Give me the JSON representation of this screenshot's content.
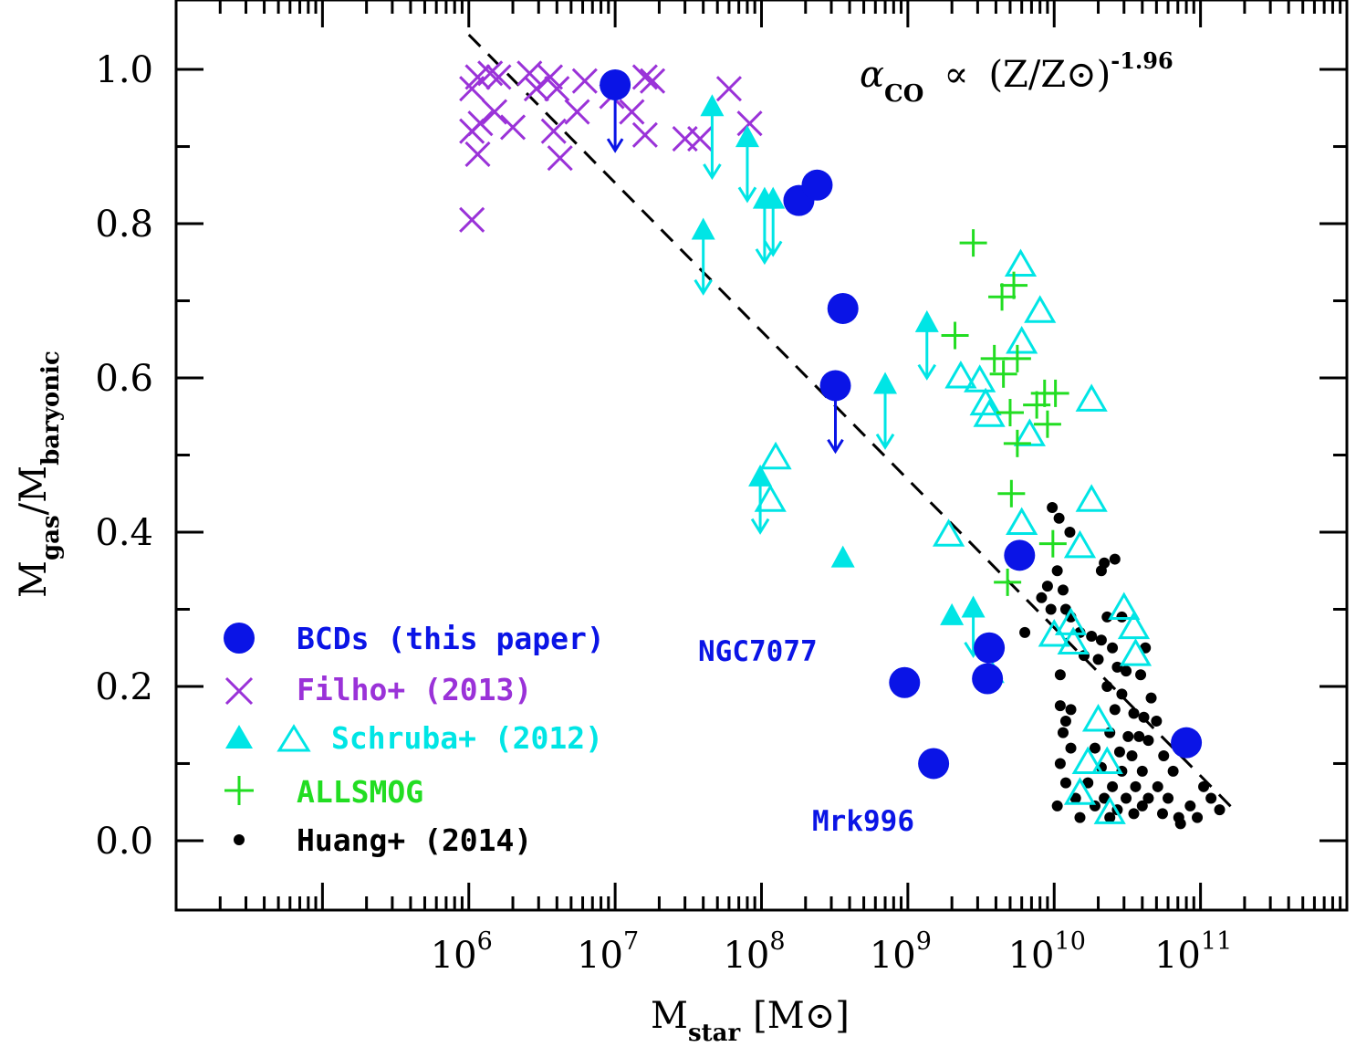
{
  "chart_data": {
    "type": "scatter",
    "x_scale": "log",
    "xlim": [
      10000,
      1000000000000.0
    ],
    "ylim": [
      -0.09,
      1.09
    ],
    "xlabel": {
      "main": "M",
      "sub": "star",
      "unit": "[M",
      "unit_close": "]"
    },
    "ylabel": {
      "main1": "M",
      "sub1": "gas",
      "mid": "/M",
      "sub2": "baryonic"
    },
    "x_ticks": [
      {
        "mantissa": "10",
        "exp": "6",
        "value": 1000000.0
      },
      {
        "mantissa": "10",
        "exp": "7",
        "value": 10000000.0
      },
      {
        "mantissa": "10",
        "exp": "8",
        "value": 100000000.0
      },
      {
        "mantissa": "10",
        "exp": "9",
        "value": 1000000000.0
      },
      {
        "mantissa": "10",
        "exp": "10",
        "value": 10000000000.0
      },
      {
        "mantissa": "10",
        "exp": "11",
        "value": 100000000000.0
      }
    ],
    "y_ticks": [
      "0.0",
      "0.2",
      "0.4",
      "0.6",
      "0.8",
      "1.0"
    ],
    "formula": {
      "alpha": "α",
      "sub": "CO",
      "prop": "∝",
      "ratio": "(Z/Z",
      "close": ")",
      "exp": "-1.96"
    },
    "annotations": [
      {
        "text": "NGC7077",
        "x": 1100000000.0,
        "y": 0.25
      },
      {
        "text": "Mrk996",
        "x": 2200000000.0,
        "y": 0.03
      }
    ],
    "fit_line": {
      "style": "dashed",
      "color": "#000000",
      "x": [
        1000000.0,
        180000000000.0
      ],
      "y": [
        1.045,
        0.035
      ]
    },
    "legend": [
      {
        "label": "BCDs (this paper)",
        "marker": "circle",
        "color": "#0a14e6"
      },
      {
        "label": "Filho+ (2013)",
        "marker": "cross",
        "color": "#9a32d8"
      },
      {
        "label": "Schruba+ (2012)",
        "marker": "triangle-filled+open",
        "color": "#00e5e5"
      },
      {
        "label": "ALLSMOG",
        "marker": "plus",
        "color": "#22dd22"
      },
      {
        "label": "Huang+ (2014)",
        "marker": "dot",
        "color": "#000000"
      }
    ],
    "series": [
      {
        "name": "BCDs (this paper)",
        "marker": "circle",
        "color": "#0a14e6",
        "points": [
          {
            "x": 10000000.0,
            "y": 0.98,
            "upper_limit": true
          },
          {
            "x": 180000000.0,
            "y": 0.83
          },
          {
            "x": 240000000.0,
            "y": 0.85
          },
          {
            "x": 360000000.0,
            "y": 0.69
          },
          {
            "x": 320000000.0,
            "y": 0.59,
            "upper_limit": true
          },
          {
            "x": 5800000000.0,
            "y": 0.37
          },
          {
            "x": 3600000000.0,
            "y": 0.25
          },
          {
            "x": 3500000000.0,
            "y": 0.21
          },
          {
            "x": 950000000.0,
            "y": 0.205
          },
          {
            "x": 1500000000.0,
            "y": 0.1
          },
          {
            "x": 80000000000.0,
            "y": 0.127
          }
        ]
      },
      {
        "name": "Filho+ (2013)",
        "marker": "cross",
        "color": "#9a32d8",
        "points": [
          {
            "x": 1050000.0,
            "y": 0.975
          },
          {
            "x": 1150000.0,
            "y": 0.99
          },
          {
            "x": 1400000.0,
            "y": 0.995
          },
          {
            "x": 1600000.0,
            "y": 0.99
          },
          {
            "x": 2600000.0,
            "y": 0.995
          },
          {
            "x": 2900000.0,
            "y": 0.975
          },
          {
            "x": 3600000.0,
            "y": 0.99
          },
          {
            "x": 4000000.0,
            "y": 0.975
          },
          {
            "x": 6200000.0,
            "y": 0.985
          },
          {
            "x": 9500000.0,
            "y": 0.965
          },
          {
            "x": 16000000.0,
            "y": 0.99
          },
          {
            "x": 18000000.0,
            "y": 0.985
          },
          {
            "x": 1050000.0,
            "y": 0.92
          },
          {
            "x": 1200000.0,
            "y": 0.93
          },
          {
            "x": 1500000.0,
            "y": 0.945
          },
          {
            "x": 2000000.0,
            "y": 0.925
          },
          {
            "x": 3800000.0,
            "y": 0.92
          },
          {
            "x": 5500000.0,
            "y": 0.945
          },
          {
            "x": 1150000.0,
            "y": 0.89
          },
          {
            "x": 4200000.0,
            "y": 0.885
          },
          {
            "x": 13000000.0,
            "y": 0.945
          },
          {
            "x": 16000000.0,
            "y": 0.915
          },
          {
            "x": 30000000.0,
            "y": 0.91
          },
          {
            "x": 38000000.0,
            "y": 0.91
          },
          {
            "x": 60000000.0,
            "y": 0.975
          },
          {
            "x": 83000000.0,
            "y": 0.93
          },
          {
            "x": 1050000.0,
            "y": 0.805
          }
        ]
      },
      {
        "name": "Schruba+ (2012) filled",
        "marker": "triangle-filled",
        "color": "#00e5e5",
        "points": [
          {
            "x": 46000000.0,
            "y": 0.95,
            "error_bar": [
              0.86,
              0.95
            ]
          },
          {
            "x": 80000000.0,
            "y": 0.91,
            "error_bar": [
              0.83,
              0.91
            ]
          },
          {
            "x": 105000000.0,
            "y": 0.83,
            "error_bar": [
              0.75,
              0.83
            ]
          },
          {
            "x": 120000000.0,
            "y": 0.83,
            "error_bar": [
              0.76,
              0.83
            ]
          },
          {
            "x": 40000000.0,
            "y": 0.79,
            "error_bar": [
              0.71,
              0.79
            ]
          },
          {
            "x": 1350000000.0,
            "y": 0.67,
            "error_bar": [
              0.6,
              0.67
            ]
          },
          {
            "x": 700000000.0,
            "y": 0.59,
            "error_bar": [
              0.51,
              0.59
            ]
          },
          {
            "x": 98000000.0,
            "y": 0.47,
            "error_bar": [
              0.4,
              0.47
            ]
          },
          {
            "x": 360000000.0,
            "y": 0.365
          },
          {
            "x": 2000000000.0,
            "y": 0.29
          },
          {
            "x": 2800000000.0,
            "y": 0.3,
            "error_bar": [
              0.24,
              0.3
            ]
          },
          {
            "x": 3800000000.0,
            "y": 0.215
          }
        ]
      },
      {
        "name": "Schruba+ (2012) open",
        "marker": "triangle-open",
        "color": "#00e5e5",
        "points": [
          {
            "x": 125000000.0,
            "y": 0.495
          },
          {
            "x": 115000000.0,
            "y": 0.44
          },
          {
            "x": 1900000000.0,
            "y": 0.395
          },
          {
            "x": 2300000000.0,
            "y": 0.6
          },
          {
            "x": 3100000000.0,
            "y": 0.595
          },
          {
            "x": 3400000000.0,
            "y": 0.565
          },
          {
            "x": 3600000000.0,
            "y": 0.55
          },
          {
            "x": 5900000000.0,
            "y": 0.745
          },
          {
            "x": 8000000000.0,
            "y": 0.685
          },
          {
            "x": 6000000000.0,
            "y": 0.645
          },
          {
            "x": 6800000000.0,
            "y": 0.525
          },
          {
            "x": 18000000000.0,
            "y": 0.57
          },
          {
            "x": 18000000000.0,
            "y": 0.44
          },
          {
            "x": 6000000000.0,
            "y": 0.41
          },
          {
            "x": 15000000000.0,
            "y": 0.38
          },
          {
            "x": 10000000000.0,
            "y": 0.265
          },
          {
            "x": 13000000000.0,
            "y": 0.28
          },
          {
            "x": 13500000000.0,
            "y": 0.255
          },
          {
            "x": 30000000000.0,
            "y": 0.3
          },
          {
            "x": 35000000000.0,
            "y": 0.275
          },
          {
            "x": 36000000000.0,
            "y": 0.24
          },
          {
            "x": 20000000000.0,
            "y": 0.155
          },
          {
            "x": 17000000000.0,
            "y": 0.1
          },
          {
            "x": 23000000000.0,
            "y": 0.1
          },
          {
            "x": 15000000000.0,
            "y": 0.06
          },
          {
            "x": 24000000000.0,
            "y": 0.035
          }
        ]
      },
      {
        "name": "ALLSMOG",
        "marker": "plus",
        "color": "#22dd22",
        "points": [
          {
            "x": 2800000000.0,
            "y": 0.775
          },
          {
            "x": 5300000000.0,
            "y": 0.72
          },
          {
            "x": 4400000000.0,
            "y": 0.705
          },
          {
            "x": 2100000000.0,
            "y": 0.655
          },
          {
            "x": 5600000000.0,
            "y": 0.625
          },
          {
            "x": 3900000000.0,
            "y": 0.625
          },
          {
            "x": 4500000000.0,
            "y": 0.605
          },
          {
            "x": 8600000000.0,
            "y": 0.58
          },
          {
            "x": 10200000000.0,
            "y": 0.58
          },
          {
            "x": 7600000000.0,
            "y": 0.565
          },
          {
            "x": 5000000000.0,
            "y": 0.555
          },
          {
            "x": 9000000000.0,
            "y": 0.54
          },
          {
            "x": 5600000000.0,
            "y": 0.515
          },
          {
            "x": 5100000000.0,
            "y": 0.45
          },
          {
            "x": 9800000000.0,
            "y": 0.385
          },
          {
            "x": 4800000000.0,
            "y": 0.335
          }
        ]
      },
      {
        "name": "Huang+ (2014)",
        "marker": "dot",
        "color": "#000000",
        "points": [
          {
            "x": 9700000000.0,
            "y": 0.432
          },
          {
            "x": 10800000000.0,
            "y": 0.418
          },
          {
            "x": 12800000000.0,
            "y": 0.4
          },
          {
            "x": 22000000000.0,
            "y": 0.36
          },
          {
            "x": 26000000000.0,
            "y": 0.365
          },
          {
            "x": 21000000000.0,
            "y": 0.35
          },
          {
            "x": 10500000000.0,
            "y": 0.35
          },
          {
            "x": 9000000000.0,
            "y": 0.33
          },
          {
            "x": 11500000000.0,
            "y": 0.325
          },
          {
            "x": 8200000000.0,
            "y": 0.315
          },
          {
            "x": 9500000000.0,
            "y": 0.3
          },
          {
            "x": 12000000000.0,
            "y": 0.3
          },
          {
            "x": 13000000000.0,
            "y": 0.29
          },
          {
            "x": 23000000000.0,
            "y": 0.29
          },
          {
            "x": 29000000000.0,
            "y": 0.29
          },
          {
            "x": 6300000000.0,
            "y": 0.27
          },
          {
            "x": 15000000000.0,
            "y": 0.27
          },
          {
            "x": 18000000000.0,
            "y": 0.265
          },
          {
            "x": 21000000000.0,
            "y": 0.26
          },
          {
            "x": 25000000000.0,
            "y": 0.25
          },
          {
            "x": 42000000000.0,
            "y": 0.25
          },
          {
            "x": 16000000000.0,
            "y": 0.24
          },
          {
            "x": 20000000000.0,
            "y": 0.235
          },
          {
            "x": 27000000000.0,
            "y": 0.225
          },
          {
            "x": 31000000000.0,
            "y": 0.22
          },
          {
            "x": 11000000000.0,
            "y": 0.215
          },
          {
            "x": 39000000000.0,
            "y": 0.215
          },
          {
            "x": 23000000000.0,
            "y": 0.2
          },
          {
            "x": 29000000000.0,
            "y": 0.19
          },
          {
            "x": 46000000000.0,
            "y": 0.185
          },
          {
            "x": 11000000000.0,
            "y": 0.175
          },
          {
            "x": 13000000000.0,
            "y": 0.17
          },
          {
            "x": 26000000000.0,
            "y": 0.17
          },
          {
            "x": 35000000000.0,
            "y": 0.165
          },
          {
            "x": 12000000000.0,
            "y": 0.155
          },
          {
            "x": 41000000000.0,
            "y": 0.16
          },
          {
            "x": 50000000000.0,
            "y": 0.155
          },
          {
            "x": 11500000000.0,
            "y": 0.14
          },
          {
            "x": 24000000000.0,
            "y": 0.14
          },
          {
            "x": 32000000000.0,
            "y": 0.135
          },
          {
            "x": 38000000000.0,
            "y": 0.135
          },
          {
            "x": 44000000000.0,
            "y": 0.13
          },
          {
            "x": 13000000000.0,
            "y": 0.12
          },
          {
            "x": 19000000000.0,
            "y": 0.12
          },
          {
            "x": 28000000000.0,
            "y": 0.115
          },
          {
            "x": 34000000000.0,
            "y": 0.11
          },
          {
            "x": 56000000000.0,
            "y": 0.11
          },
          {
            "x": 11000000000.0,
            "y": 0.1
          },
          {
            "x": 21000000000.0,
            "y": 0.095
          },
          {
            "x": 29000000000.0,
            "y": 0.09
          },
          {
            "x": 40000000000.0,
            "y": 0.09
          },
          {
            "x": 65000000000.0,
            "y": 0.09
          },
          {
            "x": 12000000000.0,
            "y": 0.075
          },
          {
            "x": 17000000000.0,
            "y": 0.075
          },
          {
            "x": 25000000000.0,
            "y": 0.07
          },
          {
            "x": 36000000000.0,
            "y": 0.07
          },
          {
            "x": 51000000000.0,
            "y": 0.07
          },
          {
            "x": 105000000000.0,
            "y": 0.07
          },
          {
            "x": 14000000000.0,
            "y": 0.055
          },
          {
            "x": 22000000000.0,
            "y": 0.055
          },
          {
            "x": 31000000000.0,
            "y": 0.055
          },
          {
            "x": 44000000000.0,
            "y": 0.055
          },
          {
            "x": 60000000000.0,
            "y": 0.055
          },
          {
            "x": 118000000000.0,
            "y": 0.055
          },
          {
            "x": 10500000000.0,
            "y": 0.045
          },
          {
            "x": 19000000000.0,
            "y": 0.045
          },
          {
            "x": 27000000000.0,
            "y": 0.04
          },
          {
            "x": 40000000000.0,
            "y": 0.045
          },
          {
            "x": 85000000000.0,
            "y": 0.045
          },
          {
            "x": 135000000000.0,
            "y": 0.04
          },
          {
            "x": 15000000000.0,
            "y": 0.03
          },
          {
            "x": 24000000000.0,
            "y": 0.03
          },
          {
            "x": 35000000000.0,
            "y": 0.035
          },
          {
            "x": 71000000000.0,
            "y": 0.03
          },
          {
            "x": 73000000000.0,
            "y": 0.022
          },
          {
            "x": 95000000000.0,
            "y": 0.03
          },
          {
            "x": 55000000000.0,
            "y": 0.035
          }
        ]
      }
    ]
  }
}
